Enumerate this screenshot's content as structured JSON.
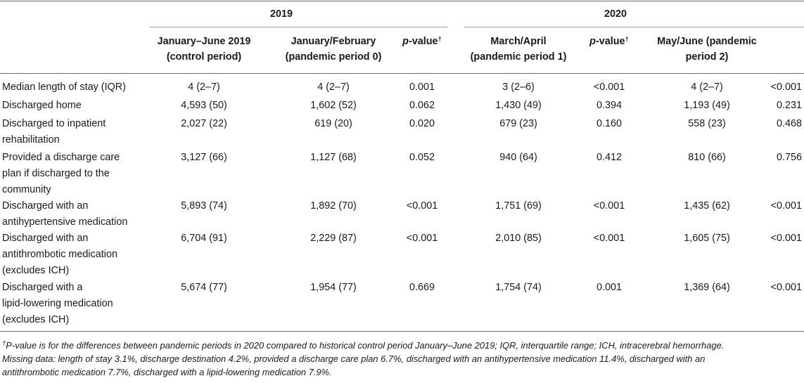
{
  "table": {
    "year_headers": [
      "2019",
      "2020"
    ],
    "columns": [
      {
        "line1": "January–June 2019",
        "line2": "(control period)"
      },
      {
        "line1": "January/February",
        "line2": "(pandemic period 0)"
      },
      {
        "p_label": "p",
        "p_suffix": "-value",
        "dagger": "†"
      },
      {
        "line1": "March/April",
        "line2": "(pandemic period 1)"
      },
      {
        "p_label": "p",
        "p_suffix": "-value",
        "dagger": "†"
      },
      {
        "line1": "May/June (pandemic",
        "line2": "period 2)"
      }
    ],
    "rows": [
      {
        "label": [
          "Median length of stay (IQR)"
        ],
        "values": [
          "4 (2–7)",
          "4 (2–7)",
          "0.001",
          "3 (2–6)",
          "<0.001",
          "4 (2–7)",
          "<0.001"
        ]
      },
      {
        "label": [
          "Discharged home"
        ],
        "values": [
          "4,593 (50)",
          "1,602 (52)",
          "0.062",
          "1,430 (49)",
          "0.394",
          "1,193 (49)",
          "0.231"
        ]
      },
      {
        "label": [
          "Discharged to inpatient",
          "rehabilitation"
        ],
        "values": [
          "2,027 (22)",
          "619 (20)",
          "0.020",
          "679 (23)",
          "0.160",
          "558 (23)",
          "0.468"
        ]
      },
      {
        "label": [
          "Provided a discharge care",
          "plan if discharged to the",
          "community"
        ],
        "values": [
          "3,127 (66)",
          "1,127 (68)",
          "0.052",
          "940 (64)",
          "0.412",
          "810 (66)",
          "0.756"
        ]
      },
      {
        "label": [
          "Discharged with an",
          "antihypertensive medication"
        ],
        "values": [
          "5,893 (74)",
          "1,892 (70)",
          "<0.001",
          "1,751 (69)",
          "<0.001",
          "1,435 (62)",
          "<0.001"
        ]
      },
      {
        "label": [
          "Discharged with an",
          "antithrombotic medication",
          "(excludes ICH)"
        ],
        "values": [
          "6,704 (91)",
          "2,229 (87)",
          "<0.001",
          "2,010 (85)",
          "<0.001",
          "1,605 (75)",
          "<0.001"
        ]
      },
      {
        "label": [
          "Discharged with a",
          "lipid-lowering medication",
          "(excludes ICH)"
        ],
        "values": [
          "5,674 (77)",
          "1,954 (77)",
          "0.669",
          "1,754 (74)",
          "0.001",
          "1,369 (64)",
          "<0.001"
        ]
      }
    ]
  },
  "footnote": {
    "dagger": "†",
    "line1": "P-value is for the differences between pandemic periods in 2020 compared to historical control period January–June 2019; IQR, interquartile range; ICH, intracerebral hemorrhage.",
    "line2": "Missing data: length of stay 3.1%, discharge destination 4.2%, provided a discharge care plan 6.7%, discharged with an antihypertensive medication 11.4%, discharged with an",
    "line3": "antithrombotic medication 7.7%, discharged with a lipid-lowering medication 7.9%."
  }
}
